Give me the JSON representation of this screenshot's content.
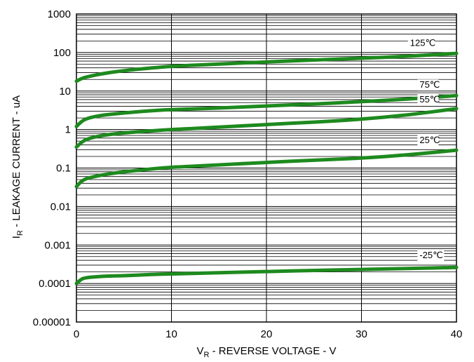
{
  "chart_data": {
    "type": "line",
    "xlabel": {
      "main": "V",
      "sub": "R",
      "rest": " - REVERSE VOLTAGE - V"
    },
    "ylabel": {
      "main": "I",
      "sub": "R",
      "rest": " - LEAKAGE CURRENT - uA"
    },
    "xlim": [
      0,
      40
    ],
    "ylim": [
      1e-05,
      1000
    ],
    "yscale": "log",
    "grid": true,
    "x_ticks": [
      0,
      10,
      20,
      30,
      40
    ],
    "x_tick_labels": [
      "0",
      "10",
      "20",
      "30",
      "40"
    ],
    "y_ticks": [
      1e-05,
      0.0001,
      0.001,
      0.01,
      0.1,
      1,
      10,
      100,
      1000
    ],
    "y_tick_labels": [
      "0.00001",
      "0.0001",
      "0.001",
      "0.01",
      "0.1",
      "1",
      "10",
      "100",
      "1000"
    ],
    "line_color": "#1e8a1e",
    "series": [
      {
        "name": "125℃",
        "label_at": 36,
        "x": [
          0,
          0.5,
          1,
          2,
          3,
          5,
          8,
          10,
          15,
          20,
          25,
          30,
          35,
          40
        ],
        "y": [
          18,
          21,
          23,
          26,
          29,
          34,
          40,
          44,
          50,
          57,
          64,
          71,
          80,
          95
        ]
      },
      {
        "name": "75℃",
        "label_at": 37,
        "x": [
          0,
          0.5,
          1,
          2,
          3,
          5,
          8,
          10,
          15,
          20,
          25,
          30,
          35,
          40
        ],
        "y": [
          1.2,
          1.6,
          1.9,
          2.2,
          2.4,
          2.7,
          3.1,
          3.3,
          3.6,
          4.1,
          4.6,
          5.3,
          6.2,
          7.6
        ]
      },
      {
        "name": "55℃",
        "label_at": 37,
        "x": [
          0,
          0.5,
          1,
          2,
          3,
          5,
          8,
          10,
          15,
          20,
          25,
          30,
          35,
          40
        ],
        "y": [
          0.35,
          0.46,
          0.55,
          0.65,
          0.72,
          0.82,
          0.93,
          1.0,
          1.15,
          1.35,
          1.55,
          1.85,
          2.4,
          3.5
        ]
      },
      {
        "name": "25℃",
        "label_at": 37,
        "x": [
          0,
          0.5,
          1,
          2,
          3,
          5,
          8,
          10,
          15,
          20,
          25,
          30,
          35,
          40
        ],
        "y": [
          0.033,
          0.045,
          0.053,
          0.061,
          0.068,
          0.08,
          0.095,
          0.105,
          0.12,
          0.14,
          0.16,
          0.18,
          0.22,
          0.29
        ]
      },
      {
        "name": "-25℃",
        "label_at": 37,
        "x": [
          0,
          0.5,
          1,
          2,
          3,
          5,
          8,
          10,
          15,
          20,
          25,
          30,
          35,
          40
        ],
        "y": [
          0.0001,
          0.00013,
          0.000142,
          0.00015,
          0.000155,
          0.00016,
          0.000172,
          0.000178,
          0.00019,
          0.000205,
          0.000218,
          0.000232,
          0.000245,
          0.000262
        ]
      }
    ]
  }
}
